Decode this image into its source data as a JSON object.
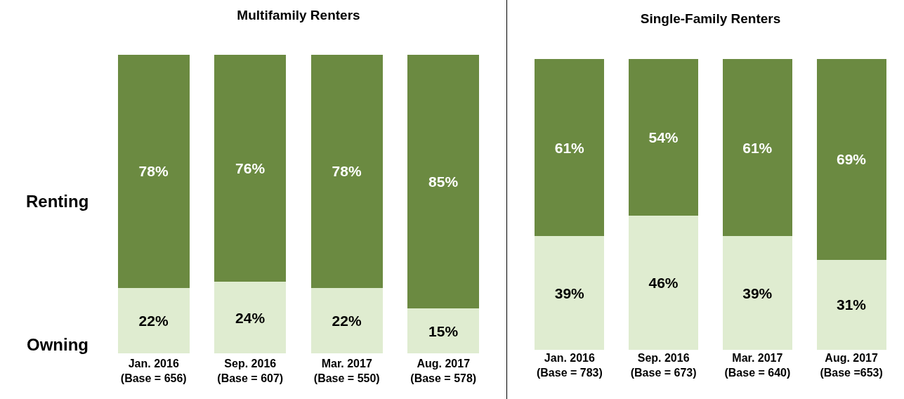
{
  "chart_data": [
    {
      "type": "bar",
      "title": "Multifamily Renters",
      "stacked": true,
      "tick_labels": "x",
      "categories": [
        "Jan. 2016\n(Base = 656)",
        "Sep. 2016\n(Base = 607)",
        "Mar. 2017\n(Base = 550)",
        "Aug. 2017\n(Base = 578)"
      ],
      "series": [
        {
          "name": "Owning",
          "color": "#dfecd0",
          "values": [
            22,
            24,
            22,
            15
          ],
          "value_labels": [
            "22%",
            "24%",
            "22%",
            "15%"
          ]
        },
        {
          "name": "Renting",
          "color": "#6b8a41",
          "values": [
            78,
            76,
            78,
            85
          ],
          "value_labels": [
            "78%",
            "76%",
            "78%",
            "85%"
          ]
        }
      ]
    },
    {
      "type": "bar",
      "title": "Single-Family Renters",
      "stacked": true,
      "tick_labels": "x",
      "categories": [
        "Jan. 2016\n(Base = 783)",
        "Sep. 2016\n(Base = 673)",
        "Mar. 2017\n(Base = 640)",
        "Aug. 2017\n(Base =653)"
      ],
      "series": [
        {
          "color": "#dfecd0",
          "values": [
            39,
            46,
            39,
            31
          ],
          "value_labels": [
            "39%",
            "46%",
            "39%",
            "31%"
          ]
        },
        {
          "color": "#6b8a41",
          "values": [
            61,
            54,
            61,
            69
          ],
          "value_labels": [
            "61%",
            "54%",
            "61%",
            "69%"
          ]
        }
      ]
    }
  ]
}
